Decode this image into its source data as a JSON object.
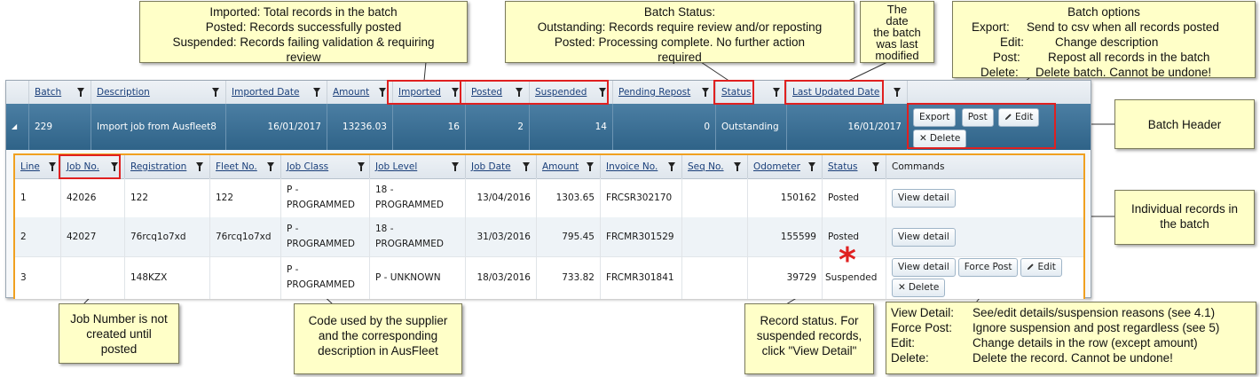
{
  "callouts": {
    "imported": [
      "Imported: Total records in the batch",
      "Posted: Records successfully posted",
      "Suspended: Records failing validation & requiring",
      "review"
    ],
    "batch_status": [
      "Batch Status:",
      "Outstanding: Records require review and/or reposting",
      "Posted: Processing complete. No further action",
      "required"
    ],
    "date": [
      "The",
      "date",
      "the batch",
      "was last",
      "modified"
    ],
    "batch_options_title": "Batch options",
    "batch_options": [
      {
        "k": "Export:",
        "v": "Send to csv when all records posted"
      },
      {
        "k": "Edit:",
        "v": "Change description"
      },
      {
        "k": "Post:",
        "v": "Repost all records in the batch"
      },
      {
        "k": "Delete:",
        "v": "Delete batch. Cannot be undone!"
      }
    ],
    "batch_header": "Batch Header",
    "individual": [
      "Individual records in",
      "the batch"
    ],
    "job_number": [
      "Job Number is not",
      "created until",
      "posted"
    ],
    "code": [
      "Code used by the supplier",
      "and the corresponding",
      "description in AusFleet"
    ],
    "record_status": [
      "Record status. For",
      "suspended records,",
      "click \"View Detail\""
    ],
    "commands": [
      {
        "k": "View Detail:",
        "v": "See/edit details/suspension reasons (see 4.1)"
      },
      {
        "k": "Force Post:",
        "v": "Ignore suspension and post regardless (see 5)"
      },
      {
        "k": "Edit:",
        "v": "Change details in the row (except amount)"
      },
      {
        "k": "Delete:",
        "v": "Delete the record. Cannot be undone!"
      }
    ]
  },
  "batch_columns": [
    "Batch",
    "Description",
    "Imported Date",
    "Amount",
    "Imported",
    "Posted",
    "Suspended",
    "Pending Repost",
    "Status",
    "Last Updated Date"
  ],
  "batch_row": {
    "batch": "229",
    "description": "Import job from Ausfleet8",
    "imported_date": "16/01/2017",
    "amount": "13236.03",
    "imported": "16",
    "posted": "2",
    "suspended": "14",
    "pending_repost": "0",
    "status": "Outstanding",
    "last_updated": "16/01/2017",
    "buttons": {
      "export": "Export",
      "post": "Post",
      "edit": "Edit",
      "delete": "Delete"
    }
  },
  "record_columns": [
    "Line",
    "Job No.",
    "Registration",
    "Fleet No.",
    "Job Class",
    "Job Level",
    "Job Date",
    "Amount",
    "Invoice No.",
    "Seq No.",
    "Odometer",
    "Status",
    "Commands"
  ],
  "records": [
    {
      "line": "1",
      "job_no": "42026",
      "registration": "122",
      "fleet_no": "122",
      "job_class": [
        "P -",
        "PROGRAMMED"
      ],
      "job_level": [
        "18 -",
        "PROGRAMMED"
      ],
      "job_date": "13/04/2016",
      "amount": "1303.65",
      "invoice_no": "FRCSR302170",
      "seq_no": "",
      "odometer": "150162",
      "status": "Posted"
    },
    {
      "line": "2",
      "job_no": "42027",
      "registration": "76rcq1o7xd",
      "fleet_no": "76rcq1o7xd",
      "job_class": [
        "P -",
        "PROGRAMMED"
      ],
      "job_level": [
        "18 -",
        "PROGRAMMED"
      ],
      "job_date": "31/03/2016",
      "amount": "795.45",
      "invoice_no": "FRCMR301529",
      "seq_no": "",
      "odometer": "155599",
      "status": "Posted"
    },
    {
      "line": "3",
      "job_no": "",
      "registration": "148KZX",
      "fleet_no": "",
      "job_class": [
        "P -",
        "PROGRAMMED"
      ],
      "job_level": [
        "P - UNKNOWN",
        ""
      ],
      "job_date": "18/03/2016",
      "amount": "733.82",
      "invoice_no": "FRCMR301841",
      "seq_no": "",
      "odometer": "39729",
      "status": "Suspended"
    }
  ],
  "row_buttons": {
    "view_detail": "View detail",
    "force_post": "Force Post",
    "edit": "Edit",
    "delete": "Delete"
  },
  "star": "*",
  "colors": {
    "callout_bg": "#ffffc8",
    "highlight": "#e02020",
    "inner_border": "#f0a020",
    "batch_header": "#2f6388"
  }
}
